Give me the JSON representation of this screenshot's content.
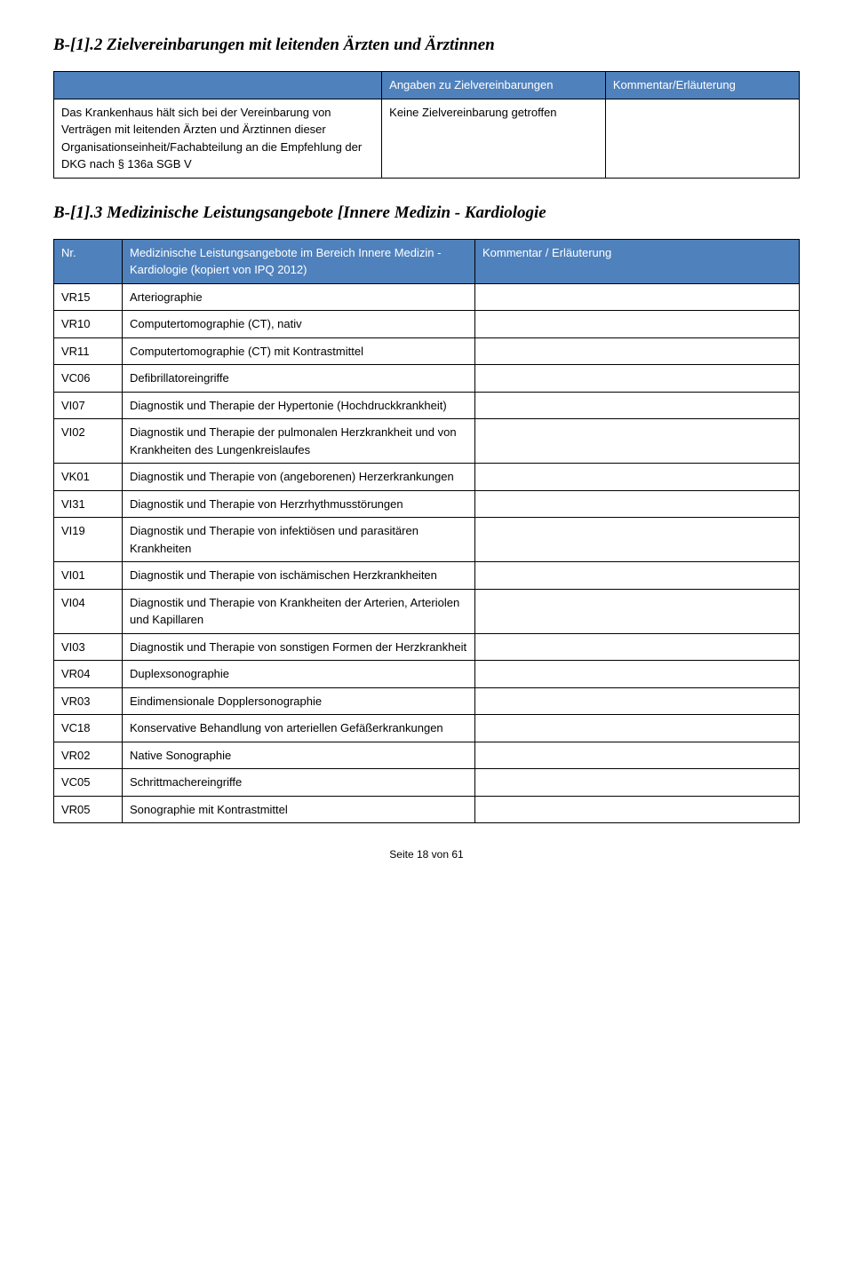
{
  "section1": {
    "title": "B-[1].2 Zielvereinbarungen mit leitenden Ärzten und Ärztinnen",
    "header_col2": "Angaben zu Zielvereinbarungen",
    "header_col3": "Kommentar/Erläuterung",
    "row1_col1": "Das Krankenhaus hält sich bei der Vereinbarung von Verträgen mit leitenden Ärzten und Ärztinnen dieser Organisationseinheit/Fachabteilung an die Empfehlung der DKG nach § 136a SGB V",
    "row1_col2": "Keine Zielvereinbarung getroffen",
    "row1_col3": ""
  },
  "section2": {
    "title": "B-[1].3 Medizinische Leistungsangebote [Innere Medizin - Kardiologie",
    "header_col1": "Nr.",
    "header_col2": "Medizinische Leistungsangebote im Bereich Innere Medizin - Kardiologie (kopiert von IPQ 2012)",
    "header_col3": "Kommentar / Erläuterung",
    "rows": [
      {
        "code": "VR15",
        "text": "Arteriographie"
      },
      {
        "code": "VR10",
        "text": "Computertomographie (CT), nativ"
      },
      {
        "code": "VR11",
        "text": "Computertomographie (CT) mit Kontrastmittel"
      },
      {
        "code": "VC06",
        "text": "Defibrillatoreingriffe"
      },
      {
        "code": "VI07",
        "text": "Diagnostik und Therapie der Hypertonie (Hochdruckkrankheit)"
      },
      {
        "code": "VI02",
        "text": "Diagnostik und Therapie der pulmonalen Herzkrankheit und von Krankheiten des Lungenkreislaufes"
      },
      {
        "code": "VK01",
        "text": "Diagnostik und Therapie von (angeborenen) Herzerkrankungen"
      },
      {
        "code": "VI31",
        "text": "Diagnostik und Therapie von Herzrhythmusstörungen"
      },
      {
        "code": "VI19",
        "text": "Diagnostik und Therapie von infektiösen und parasitären Krankheiten"
      },
      {
        "code": "VI01",
        "text": "Diagnostik und Therapie von ischämischen Herzkrankheiten"
      },
      {
        "code": "VI04",
        "text": "Diagnostik und Therapie von Krankheiten der Arterien, Arteriolen und Kapillaren"
      },
      {
        "code": "VI03",
        "text": "Diagnostik und Therapie von sonstigen Formen der Herzkrankheit"
      },
      {
        "code": "VR04",
        "text": "Duplexsonographie"
      },
      {
        "code": "VR03",
        "text": "Eindimensionale Dopplersonographie"
      },
      {
        "code": "VC18",
        "text": "Konservative Behandlung von arteriellen Gefäßerkrankungen"
      },
      {
        "code": "VR02",
        "text": "Native Sonographie"
      },
      {
        "code": "VC05",
        "text": "Schrittmachereingriffe"
      },
      {
        "code": "VR05",
        "text": "Sonographie mit Kontrastmittel"
      }
    ]
  },
  "footer": "Seite 18 von 61",
  "colors": {
    "header_bg": "#4f81bd",
    "header_fg": "#ffffff",
    "border": "#000000"
  }
}
